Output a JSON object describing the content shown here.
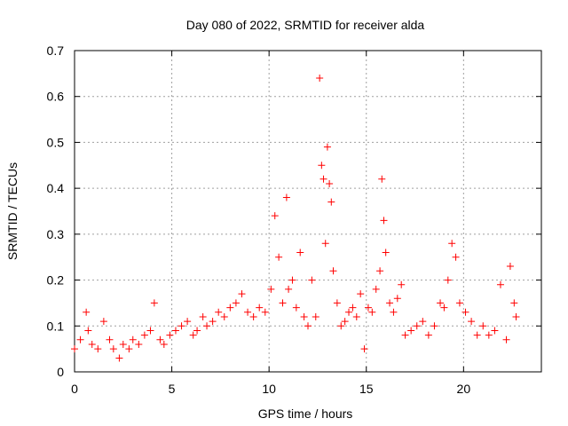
{
  "chart_data": {
    "type": "scatter",
    "title": "Day 080 of 2022, SRMTID for receiver alda",
    "xlabel": "GPS time / hours",
    "ylabel": "SRMTID / TECUs",
    "xlim": [
      0,
      24
    ],
    "ylim": [
      0,
      0.7
    ],
    "xticks": [
      "0",
      "5",
      "10",
      "15",
      "20"
    ],
    "yticks": [
      "0",
      "0.1",
      "0.2",
      "0.3",
      "0.4",
      "0.5",
      "0.6",
      "0.7"
    ],
    "grid": true,
    "marker": "+",
    "series": [
      {
        "name": "SRMTID",
        "color": "#ff0000",
        "x": [
          0.0,
          0.3,
          0.6,
          0.7,
          0.9,
          1.2,
          1.5,
          1.8,
          2.0,
          2.3,
          2.5,
          2.8,
          3.0,
          3.3,
          3.6,
          3.9,
          4.1,
          4.4,
          4.6,
          4.9,
          5.2,
          5.5,
          5.8,
          6.1,
          6.3,
          6.6,
          6.8,
          7.1,
          7.4,
          7.7,
          8.0,
          8.3,
          8.6,
          8.9,
          9.2,
          9.5,
          9.8,
          10.1,
          10.3,
          10.5,
          10.7,
          10.9,
          11.0,
          11.2,
          11.4,
          11.6,
          11.8,
          12.0,
          12.2,
          12.4,
          12.6,
          12.7,
          12.8,
          12.9,
          13.0,
          13.1,
          13.2,
          13.3,
          13.5,
          13.7,
          13.9,
          14.1,
          14.3,
          14.5,
          14.7,
          14.9,
          15.1,
          15.3,
          15.5,
          15.7,
          15.8,
          15.9,
          16.0,
          16.2,
          16.4,
          16.6,
          16.8,
          17.0,
          17.3,
          17.6,
          17.9,
          18.2,
          18.5,
          18.8,
          19.0,
          19.2,
          19.4,
          19.6,
          19.8,
          20.1,
          20.4,
          20.7,
          21.0,
          21.3,
          21.6,
          21.9,
          22.2,
          22.4,
          22.6,
          22.7
        ],
        "y": [
          0.05,
          0.07,
          0.13,
          0.09,
          0.06,
          0.05,
          0.11,
          0.07,
          0.05,
          0.03,
          0.06,
          0.05,
          0.07,
          0.06,
          0.08,
          0.09,
          0.15,
          0.07,
          0.06,
          0.08,
          0.09,
          0.1,
          0.11,
          0.08,
          0.09,
          0.12,
          0.1,
          0.11,
          0.13,
          0.12,
          0.14,
          0.15,
          0.17,
          0.13,
          0.12,
          0.14,
          0.13,
          0.18,
          0.34,
          0.25,
          0.15,
          0.38,
          0.18,
          0.2,
          0.14,
          0.26,
          0.12,
          0.1,
          0.2,
          0.12,
          0.64,
          0.45,
          0.42,
          0.28,
          0.49,
          0.41,
          0.37,
          0.22,
          0.15,
          0.1,
          0.11,
          0.13,
          0.14,
          0.12,
          0.17,
          0.05,
          0.14,
          0.13,
          0.18,
          0.22,
          0.42,
          0.33,
          0.26,
          0.15,
          0.13,
          0.16,
          0.19,
          0.08,
          0.09,
          0.1,
          0.11,
          0.08,
          0.1,
          0.15,
          0.14,
          0.2,
          0.28,
          0.25,
          0.15,
          0.13,
          0.11,
          0.08,
          0.1,
          0.08,
          0.09,
          0.19,
          0.07,
          0.23,
          0.15,
          0.12
        ]
      }
    ]
  }
}
